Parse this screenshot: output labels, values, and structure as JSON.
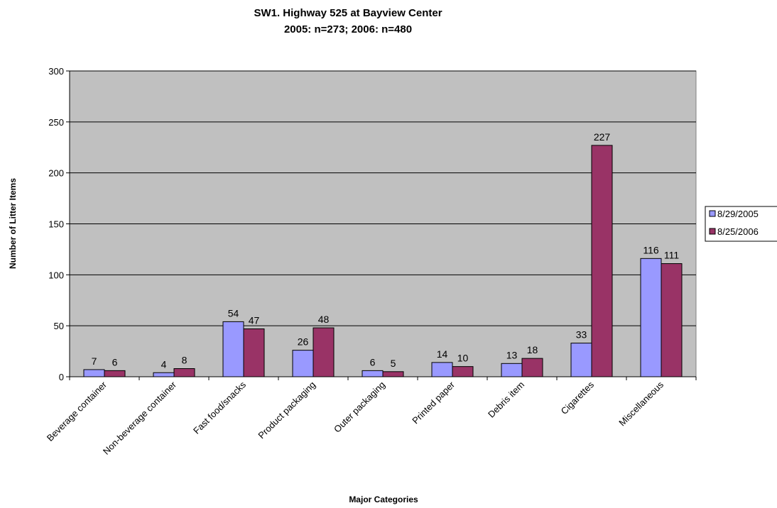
{
  "chart_data": {
    "type": "bar",
    "title": "SW1. Highway 525 at Bayview Center",
    "subtitle": "2005: n=273; 2006: n=480",
    "xlabel": "Major Categories",
    "ylabel": "Number of Litter Items",
    "ylim": [
      0,
      300
    ],
    "yticks": [
      0,
      50,
      100,
      150,
      200,
      250,
      300
    ],
    "grid": true,
    "legend_position": "right",
    "categories": [
      "Beverage container",
      "Non-beverage container",
      "Fast food/snacks",
      "Product packaging",
      "Outer packaging",
      "Printed paper",
      "Debris item",
      "Cigarettes",
      "Miscellaneous"
    ],
    "series": [
      {
        "name": "8/29/2005",
        "color": "#9999ff",
        "values": [
          7,
          4,
          54,
          26,
          6,
          14,
          13,
          33,
          116
        ]
      },
      {
        "name": "8/25/2006",
        "color": "#993366",
        "values": [
          6,
          8,
          47,
          48,
          5,
          10,
          18,
          227,
          111
        ]
      }
    ],
    "plot_background": "#c0c0c0"
  }
}
